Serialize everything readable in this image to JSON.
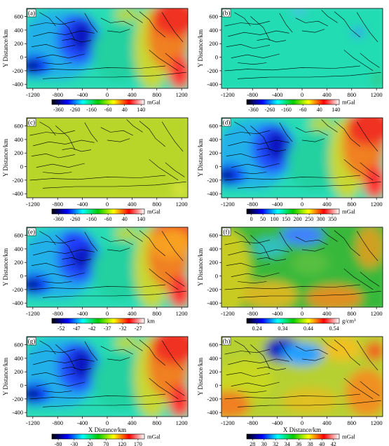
{
  "chart_data": [
    {
      "type": "heatmap",
      "panel_label": "(a)",
      "xlim": [
        -1300,
        1300
      ],
      "ylim": [
        -460,
        720
      ],
      "x_ticks": [
        "-1200",
        "-800",
        "-400",
        "0",
        "400",
        "800",
        "1200"
      ],
      "y_ticks": [
        "600",
        "400",
        "200",
        "0",
        "-200",
        "-400"
      ],
      "ylabel": "Y Distance/km",
      "xlabel": "",
      "colorbar": {
        "ticks": [
          "-360",
          "-260",
          "-160",
          "-60",
          "40",
          "140"
        ],
        "unit": "mGal",
        "range": [
          -400,
          160
        ]
      },
      "pattern": "full"
    },
    {
      "type": "heatmap",
      "panel_label": "(b)",
      "xlim": [
        -1300,
        1300
      ],
      "ylim": [
        -460,
        720
      ],
      "x_ticks": [
        "-1200",
        "-800",
        "-400",
        "0",
        "400",
        "800",
        "1200"
      ],
      "y_ticks": [
        "600",
        "400",
        "200",
        "0",
        "-200",
        "-400"
      ],
      "ylabel": "Y Distance/km",
      "xlabel": "",
      "colorbar": {
        "ticks": [
          "-360",
          "-260",
          "-160",
          "-60",
          "40",
          "140"
        ],
        "unit": "mGal",
        "range": [
          -400,
          160
        ]
      },
      "pattern": "flat-cyan"
    },
    {
      "type": "heatmap",
      "panel_label": "(c)",
      "xlim": [
        -1300,
        1300
      ],
      "ylim": [
        -460,
        720
      ],
      "x_ticks": [
        "-1200",
        "-800",
        "-400",
        "0",
        "400",
        "800",
        "1200"
      ],
      "y_ticks": [
        "600",
        "400",
        "200",
        "0",
        "-200",
        "-400"
      ],
      "ylabel": "Y Distance/km",
      "xlabel": "",
      "colorbar": {
        "ticks": [
          "-360",
          "-260",
          "-160",
          "-60",
          "40",
          "140"
        ],
        "unit": "mGal",
        "range": [
          -400,
          160
        ]
      },
      "pattern": "flat-yellow"
    },
    {
      "type": "heatmap",
      "panel_label": "(d)",
      "xlim": [
        -1300,
        1300
      ],
      "ylim": [
        -460,
        720
      ],
      "x_ticks": [
        "-1200",
        "-800",
        "-400",
        "0",
        "400",
        "800",
        "1200"
      ],
      "y_ticks": [
        "600",
        "400",
        "200",
        "0",
        "-200",
        "-400"
      ],
      "ylabel": "Y Distance/km",
      "xlabel": "",
      "colorbar": {
        "ticks": [
          "0",
          "50",
          "100",
          "150",
          "200",
          "250",
          "300",
          "350"
        ],
        "unit": "mGal",
        "range": [
          -20,
          380
        ]
      },
      "pattern": "full"
    },
    {
      "type": "heatmap",
      "panel_label": "(e)",
      "xlim": [
        -1300,
        1300
      ],
      "ylim": [
        -460,
        720
      ],
      "x_ticks": [
        "-1200",
        "-800",
        "-400",
        "0",
        "400",
        "800",
        "1200"
      ],
      "y_ticks": [
        "600",
        "400",
        "200",
        "0",
        "-200",
        "-400"
      ],
      "ylabel": "Y Distance/km",
      "xlabel": "",
      "colorbar": {
        "ticks": [
          "-52",
          "-47",
          "-42",
          "-37",
          "-32",
          "-27"
        ],
        "unit": "km",
        "range": [
          -55,
          -25
        ]
      },
      "pattern": "depth"
    },
    {
      "type": "heatmap",
      "panel_label": "(f)",
      "xlim": [
        -1300,
        1300
      ],
      "ylim": [
        -460,
        720
      ],
      "x_ticks": [
        "-1200",
        "-800",
        "-400",
        "0",
        "400",
        "800",
        "1200"
      ],
      "y_ticks": [
        "600",
        "400",
        "200",
        "0",
        "-200",
        "-400"
      ],
      "ylabel": "Y Distance/km",
      "xlabel": "",
      "colorbar": {
        "ticks": [
          "0.24",
          "0.34",
          "0.44",
          "0.54"
        ],
        "unit": "g/cm³",
        "range": [
          0.2,
          0.56
        ]
      },
      "pattern": "density"
    },
    {
      "type": "heatmap",
      "panel_label": "(g)",
      "xlim": [
        -1300,
        1300
      ],
      "ylim": [
        -460,
        720
      ],
      "x_ticks": [
        "-1200",
        "-800",
        "-400",
        "0",
        "400",
        "800",
        "1200"
      ],
      "y_ticks": [
        "600",
        "400",
        "200",
        "0",
        "-200",
        "-400"
      ],
      "ylabel": "Y Distance/km",
      "xlabel": "X Distance/km",
      "colorbar": {
        "ticks": [
          "-80",
          "-30",
          "20",
          "70",
          "120",
          "170"
        ],
        "unit": "mGal",
        "range": [
          -100,
          190
        ]
      },
      "pattern": "full"
    },
    {
      "type": "heatmap",
      "panel_label": "(h)",
      "xlim": [
        -1300,
        1300
      ],
      "ylim": [
        -460,
        720
      ],
      "x_ticks": [
        "-1200",
        "-800",
        "-400",
        "0",
        "400",
        "800",
        "1200"
      ],
      "y_ticks": [
        "600",
        "400",
        "200",
        "0",
        "-200",
        "-400"
      ],
      "ylabel": "Y Distance/km",
      "xlabel": "X Distance/km",
      "colorbar": {
        "ticks": [
          "28",
          "30",
          "32",
          "34",
          "36",
          "38",
          "40",
          "42"
        ],
        "unit": "mGal",
        "range": [
          27,
          43
        ]
      },
      "pattern": "residual"
    }
  ],
  "colors": {
    "colormap": [
      "#000000",
      "#0000ff",
      "#00ffff",
      "#00cc00",
      "#ffff00",
      "#ff0000",
      "#ffffff"
    ]
  }
}
